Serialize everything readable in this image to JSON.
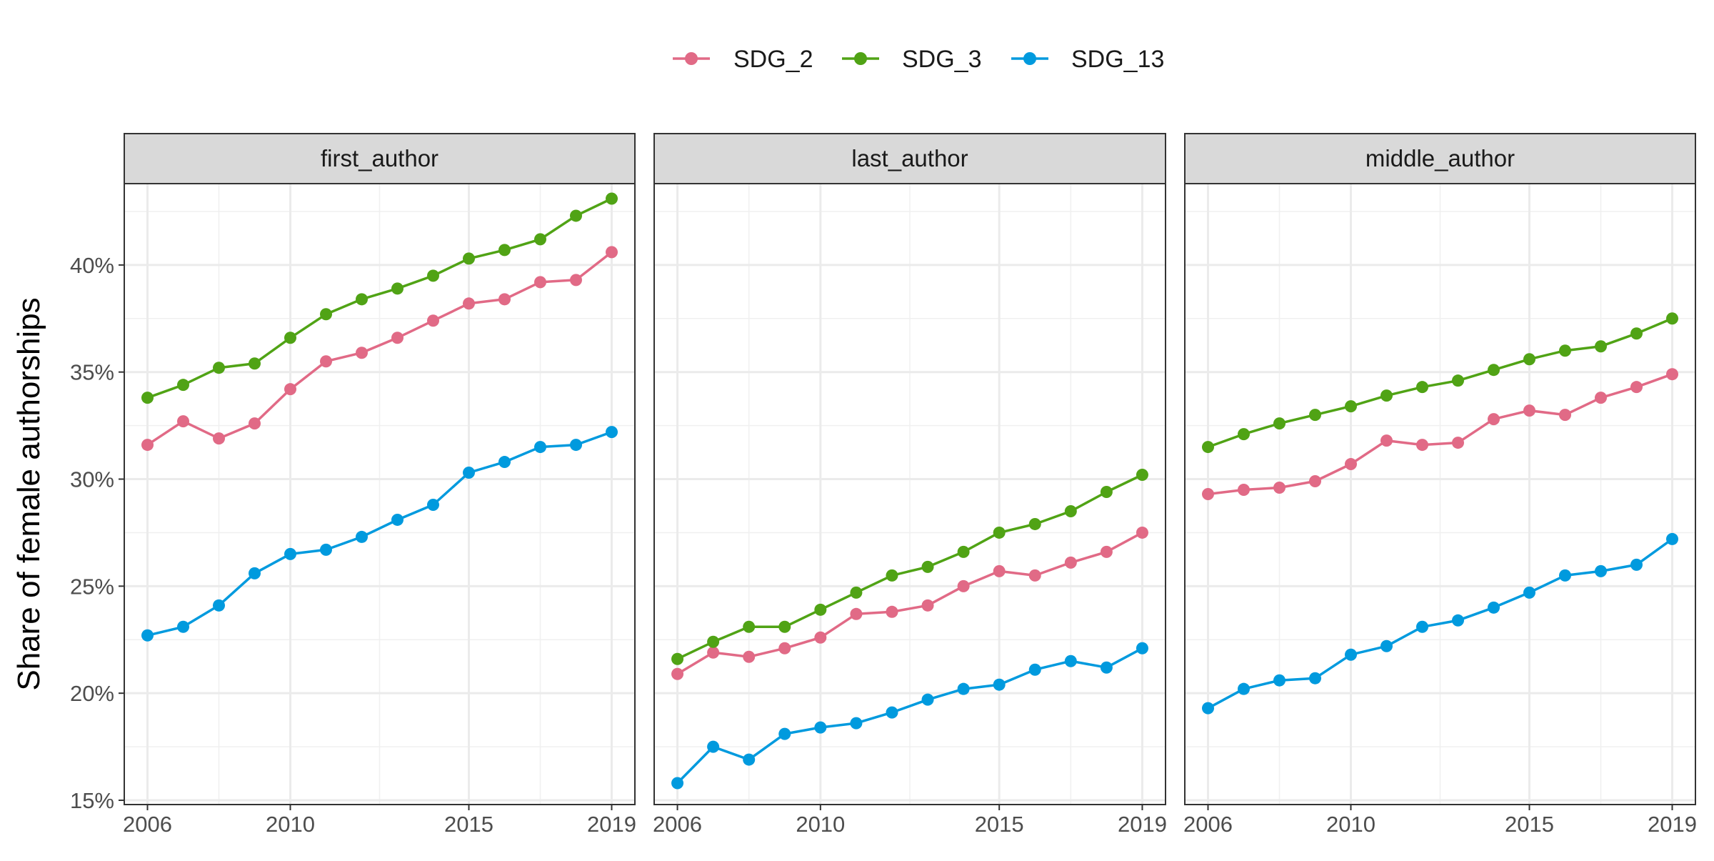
{
  "chart_data": {
    "type": "line",
    "ylabel": "Share of female authorships",
    "xlabel": "",
    "x": [
      2006,
      2007,
      2008,
      2009,
      2010,
      2011,
      2012,
      2013,
      2014,
      2015,
      2016,
      2017,
      2018,
      2019
    ],
    "x_ticks": [
      2006,
      2010,
      2015,
      2019
    ],
    "y_ticks": [
      15,
      20,
      25,
      30,
      35,
      40
    ],
    "y_tick_labels": [
      "15%",
      "20%",
      "25%",
      "30%",
      "35%",
      "40%"
    ],
    "ylim": [
      14.8,
      43.8
    ],
    "xlim": [
      2005.35,
      2019.65
    ],
    "legend_position": "top",
    "grid": true,
    "series_meta": [
      {
        "name": "SDG_2",
        "color": "#E16A86"
      },
      {
        "name": "SDG_3",
        "color": "#50A315"
      },
      {
        "name": "SDG_13",
        "color": "#009ADE"
      }
    ],
    "panels": [
      {
        "label": "first_author",
        "series": [
          {
            "name": "SDG_2",
            "values": [
              31.6,
              32.7,
              31.9,
              32.6,
              34.2,
              35.5,
              35.9,
              36.6,
              37.4,
              38.2,
              38.4,
              39.2,
              39.3,
              40.6
            ]
          },
          {
            "name": "SDG_3",
            "values": [
              33.8,
              34.4,
              35.2,
              35.4,
              36.6,
              37.7,
              38.4,
              38.9,
              39.5,
              40.3,
              40.7,
              41.2,
              42.3,
              43.1
            ]
          },
          {
            "name": "SDG_13",
            "values": [
              22.7,
              23.1,
              24.1,
              25.6,
              26.5,
              26.7,
              27.3,
              28.1,
              28.8,
              30.3,
              30.8,
              31.5,
              31.6,
              32.2
            ]
          }
        ]
      },
      {
        "label": "last_author",
        "series": [
          {
            "name": "SDG_2",
            "values": [
              20.9,
              21.9,
              21.7,
              22.1,
              22.6,
              23.7,
              23.8,
              24.1,
              25.0,
              25.7,
              25.5,
              26.1,
              26.6,
              27.5
            ]
          },
          {
            "name": "SDG_3",
            "values": [
              21.6,
              22.4,
              23.1,
              23.1,
              23.9,
              24.7,
              25.5,
              25.9,
              26.6,
              27.5,
              27.9,
              28.5,
              29.4,
              30.2
            ]
          },
          {
            "name": "SDG_13",
            "values": [
              15.8,
              17.5,
              16.9,
              18.1,
              18.4,
              18.6,
              19.1,
              19.7,
              20.2,
              20.4,
              21.1,
              21.5,
              21.2,
              22.1
            ]
          }
        ]
      },
      {
        "label": "middle_author",
        "series": [
          {
            "name": "SDG_2",
            "values": [
              29.3,
              29.5,
              29.6,
              29.9,
              30.7,
              31.8,
              31.6,
              31.7,
              32.8,
              33.2,
              33.0,
              33.8,
              34.3,
              34.9
            ]
          },
          {
            "name": "SDG_3",
            "values": [
              31.5,
              32.1,
              32.6,
              33.0,
              33.4,
              33.9,
              34.3,
              34.6,
              35.1,
              35.6,
              36.0,
              36.2,
              36.8,
              37.5
            ]
          },
          {
            "name": "SDG_13",
            "values": [
              19.3,
              20.2,
              20.6,
              20.7,
              21.8,
              22.2,
              23.1,
              23.4,
              24.0,
              24.7,
              25.5,
              25.7,
              26.0,
              27.2
            ]
          }
        ]
      }
    ]
  }
}
